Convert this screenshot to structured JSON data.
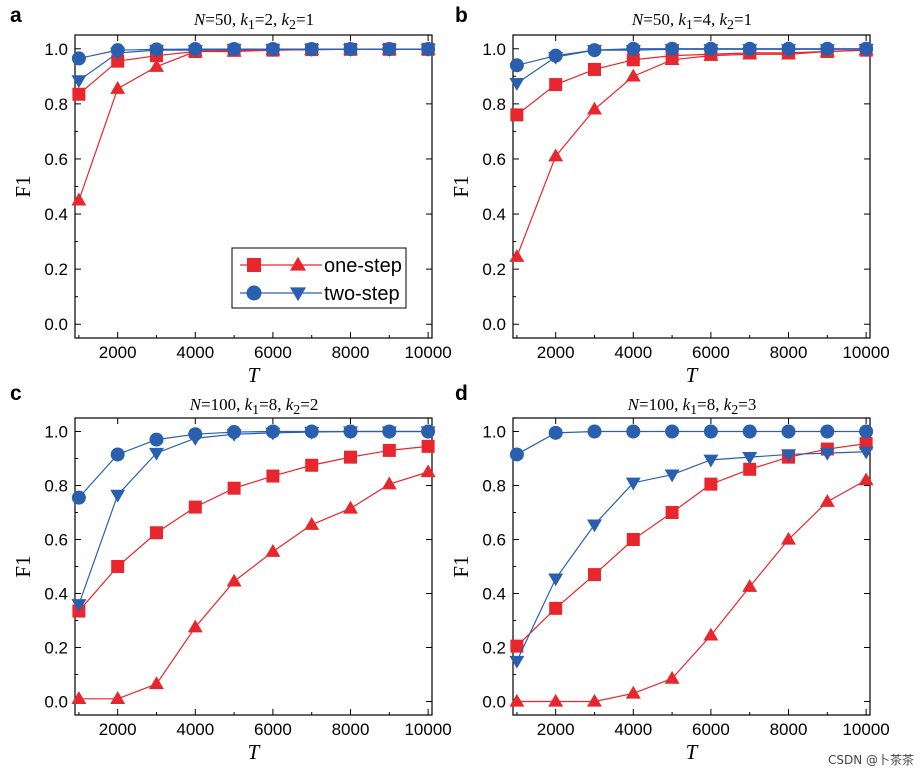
{
  "watermark": "CSDN @卜茶茶",
  "colors": {
    "one_step": "#e8262d",
    "two_step": "#2a5fb0",
    "axis": "#000000"
  },
  "chart_data": [
    {
      "type": "line",
      "panel": "a",
      "title_parts": {
        "n_label": "N",
        "n_value": "=50, ",
        "k1_label": "k",
        "k1_sub": "1",
        "k1_value": "=2, ",
        "k2_label": "k",
        "k2_sub": "2",
        "k2_value": "=1"
      },
      "xlabel": "T",
      "ylabel": "F1",
      "xlim": [
        900,
        10100
      ],
      "ylim": [
        -0.05,
        1.05
      ],
      "xticks": [
        2000,
        4000,
        6000,
        8000,
        10000
      ],
      "yticks": [
        0.0,
        0.2,
        0.4,
        0.6,
        0.8,
        1.0
      ],
      "x": [
        1000,
        2000,
        3000,
        4000,
        5000,
        6000,
        7000,
        8000,
        9000,
        10000
      ],
      "legend": {
        "placement": "bottom-right",
        "entries": [
          "one-step",
          "two-step"
        ]
      },
      "series": [
        {
          "name": "one-step (squares)",
          "marker": "square",
          "color": "one_step",
          "values": [
            0.835,
            0.955,
            0.975,
            0.99,
            0.995,
            0.995,
            0.997,
            0.998,
            0.998,
            0.998
          ]
        },
        {
          "name": "one-step (triangles)",
          "marker": "triangle-up",
          "color": "one_step",
          "values": [
            0.45,
            0.855,
            0.935,
            0.99,
            0.99,
            0.995,
            0.997,
            0.998,
            0.998,
            0.998
          ]
        },
        {
          "name": "two-step (circles)",
          "marker": "circle",
          "color": "two_step",
          "values": [
            0.965,
            0.995,
            0.998,
            0.999,
            0.999,
            0.999,
            0.999,
            0.999,
            0.999,
            0.999
          ]
        },
        {
          "name": "two-step (triangles)",
          "marker": "triangle-down",
          "color": "two_step",
          "values": [
            0.885,
            0.985,
            0.995,
            0.995,
            0.998,
            0.998,
            0.998,
            0.998,
            0.998,
            0.998
          ]
        }
      ]
    },
    {
      "type": "line",
      "panel": "b",
      "title_parts": {
        "n_label": "N",
        "n_value": "=50, ",
        "k1_label": "k",
        "k1_sub": "1",
        "k1_value": "=4, ",
        "k2_label": "k",
        "k2_sub": "2",
        "k2_value": "=1"
      },
      "xlabel": "T",
      "ylabel": "F1",
      "xlim": [
        900,
        10100
      ],
      "ylim": [
        -0.05,
        1.05
      ],
      "xticks": [
        2000,
        4000,
        6000,
        8000,
        10000
      ],
      "yticks": [
        0.0,
        0.2,
        0.4,
        0.6,
        0.8,
        1.0
      ],
      "x": [
        1000,
        2000,
        3000,
        4000,
        5000,
        6000,
        7000,
        8000,
        9000,
        10000
      ],
      "series": [
        {
          "name": "one-step (squares)",
          "marker": "square",
          "color": "one_step",
          "values": [
            0.76,
            0.87,
            0.925,
            0.96,
            0.975,
            0.98,
            0.985,
            0.985,
            0.99,
            0.995
          ]
        },
        {
          "name": "one-step (triangles)",
          "marker": "triangle-up",
          "color": "one_step",
          "values": [
            0.245,
            0.61,
            0.78,
            0.9,
            0.96,
            0.975,
            0.98,
            0.98,
            0.99,
            0.995
          ]
        },
        {
          "name": "two-step (circles)",
          "marker": "circle",
          "color": "two_step",
          "values": [
            0.94,
            0.975,
            0.995,
            1.0,
            1.0,
            1.0,
            1.0,
            1.0,
            1.0,
            1.0
          ]
        },
        {
          "name": "two-step (triangles)",
          "marker": "triangle-down",
          "color": "two_step",
          "values": [
            0.875,
            0.97,
            0.995,
            0.995,
            0.998,
            0.998,
            0.998,
            0.998,
            0.998,
            0.998
          ]
        }
      ]
    },
    {
      "type": "line",
      "panel": "c",
      "title_parts": {
        "n_label": "N",
        "n_value": "=100, ",
        "k1_label": "k",
        "k1_sub": "1",
        "k1_value": "=8, ",
        "k2_label": "k",
        "k2_sub": "2",
        "k2_value": "=2"
      },
      "xlabel": "T",
      "ylabel": "F1",
      "xlim": [
        900,
        10100
      ],
      "ylim": [
        -0.05,
        1.05
      ],
      "xticks": [
        2000,
        4000,
        6000,
        8000,
        10000
      ],
      "yticks": [
        0.0,
        0.2,
        0.4,
        0.6,
        0.8,
        1.0
      ],
      "x": [
        1000,
        2000,
        3000,
        4000,
        5000,
        6000,
        7000,
        8000,
        9000,
        10000
      ],
      "series": [
        {
          "name": "one-step (squares)",
          "marker": "square",
          "color": "one_step",
          "values": [
            0.335,
            0.5,
            0.625,
            0.72,
            0.79,
            0.835,
            0.875,
            0.905,
            0.93,
            0.945
          ]
        },
        {
          "name": "one-step (triangles)",
          "marker": "triangle-up",
          "color": "one_step",
          "values": [
            0.01,
            0.01,
            0.065,
            0.275,
            0.445,
            0.555,
            0.655,
            0.715,
            0.805,
            0.85
          ]
        },
        {
          "name": "two-step (circles)",
          "marker": "circle",
          "color": "two_step",
          "values": [
            0.755,
            0.915,
            0.97,
            0.99,
            0.998,
            1.0,
            1.0,
            1.0,
            1.0,
            1.0
          ]
        },
        {
          "name": "two-step (triangles)",
          "marker": "triangle-down",
          "color": "two_step",
          "values": [
            0.36,
            0.765,
            0.92,
            0.975,
            0.99,
            0.995,
            0.998,
            1.0,
            1.0,
            1.0
          ]
        }
      ]
    },
    {
      "type": "line",
      "panel": "d",
      "title_parts": {
        "n_label": "N",
        "n_value": "=100, ",
        "k1_label": "k",
        "k1_sub": "1",
        "k1_value": "=8, ",
        "k2_label": "k",
        "k2_sub": "2",
        "k2_value": "=3"
      },
      "xlabel": "T",
      "ylabel": "F1",
      "xlim": [
        900,
        10100
      ],
      "ylim": [
        -0.05,
        1.05
      ],
      "xticks": [
        2000,
        4000,
        6000,
        8000,
        10000
      ],
      "yticks": [
        0.0,
        0.2,
        0.4,
        0.6,
        0.8,
        1.0
      ],
      "x": [
        1000,
        2000,
        3000,
        4000,
        5000,
        6000,
        7000,
        8000,
        9000,
        10000
      ],
      "series": [
        {
          "name": "one-step (squares)",
          "marker": "square",
          "color": "one_step",
          "values": [
            0.205,
            0.345,
            0.47,
            0.6,
            0.7,
            0.805,
            0.86,
            0.905,
            0.935,
            0.955
          ]
        },
        {
          "name": "one-step (triangles)",
          "marker": "triangle-up",
          "color": "one_step",
          "values": [
            0.0,
            0.0,
            0.0,
            0.03,
            0.085,
            0.245,
            0.425,
            0.6,
            0.74,
            0.82
          ]
        },
        {
          "name": "two-step (circles)",
          "marker": "circle",
          "color": "two_step",
          "values": [
            0.915,
            0.995,
            1.0,
            1.0,
            1.0,
            1.0,
            1.0,
            1.0,
            1.0,
            1.0
          ]
        },
        {
          "name": "two-step (triangles)",
          "marker": "triangle-down",
          "color": "two_step",
          "values": [
            0.15,
            0.455,
            0.655,
            0.81,
            0.84,
            0.895,
            0.905,
            0.915,
            0.92,
            0.925
          ]
        }
      ]
    }
  ]
}
